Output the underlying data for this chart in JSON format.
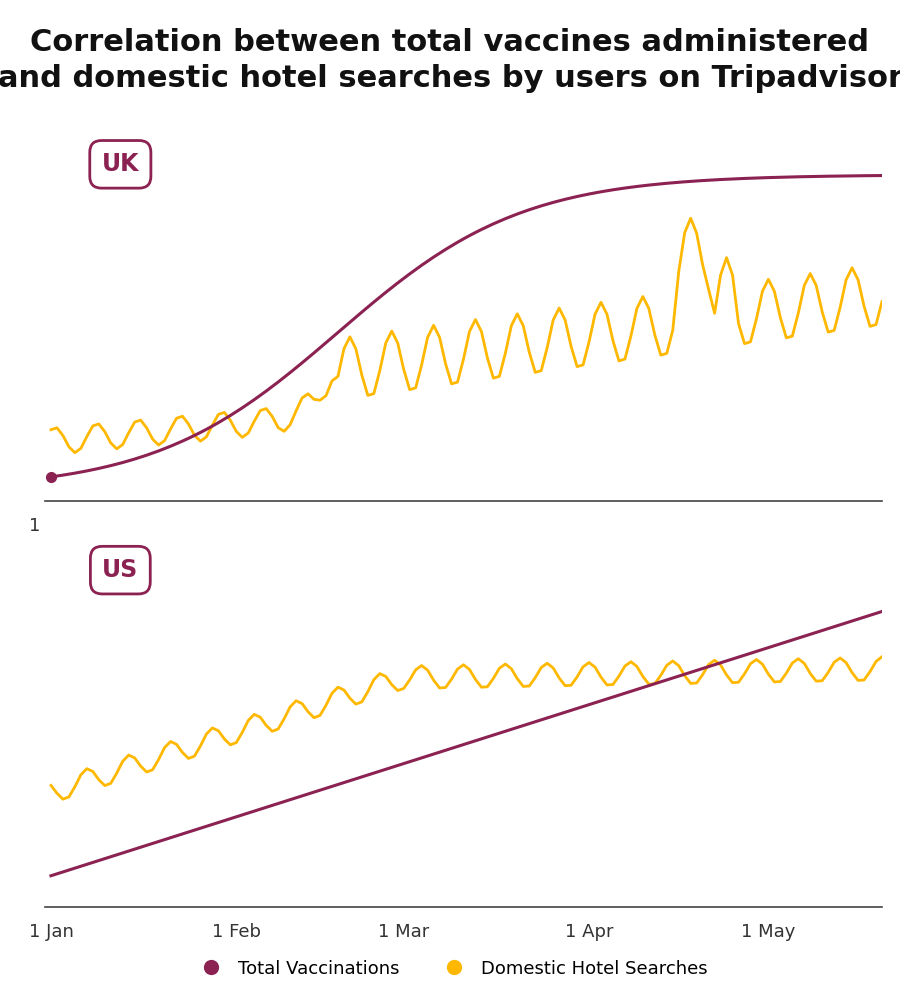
{
  "title": "Correlation between total vaccines administered\nand domestic hotel searches by users on Tripadvisor",
  "title_fontsize": 22,
  "title_fontweight": "bold",
  "bg_color": "#ffffff",
  "vaccine_color": "#8B2252",
  "hotel_color": "#FFB800",
  "label_uk": "UK",
  "label_us": "US",
  "xtick_labels": [
    "1 Jan",
    "1 Feb",
    "1 Mar",
    "1 Apr",
    "1 May"
  ],
  "legend_vaccinations": "Total Vaccinations",
  "legend_hotel": "Domestic Hotel Searches"
}
